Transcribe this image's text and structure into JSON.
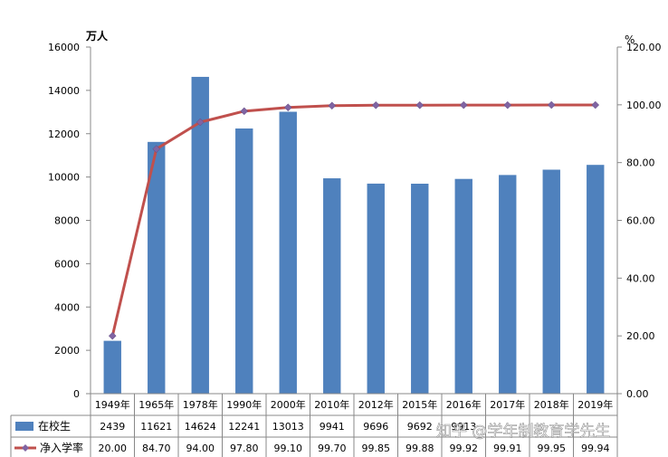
{
  "chart_data": {
    "type": "bar",
    "categories": [
      "1949年",
      "1965年",
      "1978年",
      "1990年",
      "2000年",
      "2010年",
      "2012年",
      "2015年",
      "2016年",
      "2017年",
      "2018年",
      "2019年"
    ],
    "series": [
      {
        "name": "在校生",
        "type": "bar",
        "axis": "left",
        "color": "#4f81bd",
        "values": [
          2439,
          11621,
          14624,
          12241,
          13013,
          9941,
          9696,
          9692,
          9913,
          10094,
          10339,
          10561
        ],
        "labels": [
          "2439",
          "11621",
          "14624",
          "12241",
          "13013",
          "9941",
          "9696",
          "9692",
          "9913",
          "",
          "",
          ""
        ]
      },
      {
        "name": "净入学率",
        "type": "line",
        "axis": "right",
        "color": "#c0504d",
        "marker_color": "#8064a2",
        "values": [
          20.0,
          84.7,
          94.0,
          97.8,
          99.1,
          99.7,
          99.85,
          99.88,
          99.92,
          99.91,
          99.95,
          99.94
        ],
        "labels": [
          "20.00",
          "84.70",
          "94.00",
          "97.80",
          "99.10",
          "99.70",
          "99.85",
          "99.88",
          "99.92",
          "99.91",
          "99.95",
          "99.94"
        ]
      }
    ],
    "left_axis": {
      "unit": "万人",
      "min": 0,
      "max": 16000,
      "ticks": [
        "0",
        "2000",
        "4000",
        "6000",
        "8000",
        "10000",
        "12000",
        "14000",
        "16000"
      ]
    },
    "right_axis": {
      "unit": "%",
      "min": 0,
      "max": 120,
      "ticks": [
        "0.00",
        "20.00",
        "40.00",
        "60.00",
        "80.00",
        "100.00",
        "120.00"
      ]
    },
    "grid": false,
    "legend": "data-table"
  },
  "watermark": "知乎 @学年制教育学先生"
}
